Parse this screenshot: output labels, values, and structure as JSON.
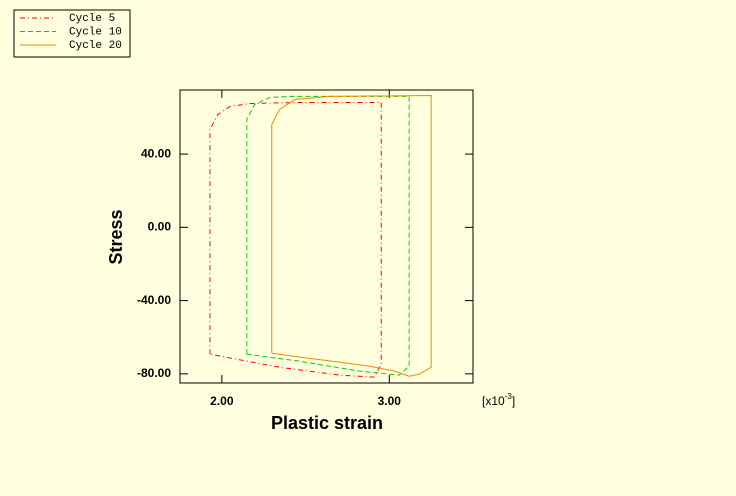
{
  "chart_data": {
    "type": "line",
    "xlabel": "Plastic strain",
    "ylabel": "Stress",
    "x_scale": {
      "base": "[x10",
      "exponent": "-3",
      "close": "]"
    },
    "xlim": [
      1.75,
      3.5
    ],
    "xticks": [
      {
        "value": 2,
        "label": "2.00"
      },
      {
        "value": 3,
        "label": "3.00"
      }
    ],
    "ylim": [
      -85,
      75
    ],
    "yticks": [
      {
        "value": 40,
        "label": "40.00"
      },
      {
        "value": 0,
        "label": "0.00"
      },
      {
        "value": -40,
        "label": "-40.00"
      },
      {
        "value": -80,
        "label": "-80.00"
      }
    ],
    "legend": "top-left",
    "series": [
      {
        "name": "Cycle 5",
        "color": "#ff0000",
        "dash": "dashdot",
        "x": [
          1.929,
          1.929,
          1.976,
          2.048,
          2.167,
          2.464,
          2.952,
          2.952,
          2.911,
          2.702,
          2.345,
          1.929
        ],
        "values": [
          -69.3,
          53.5,
          61.6,
          66.0,
          67.6,
          68.2,
          68.2,
          -74.7,
          -81.8,
          -80.7,
          -76.4,
          -69.3
        ]
      },
      {
        "name": "Cycle 10",
        "color": "#00cc00",
        "dash": "dashed",
        "x": [
          2.149,
          2.149,
          2.196,
          2.286,
          2.405,
          3.119,
          3.119,
          3.06,
          2.821,
          2.464,
          2.149
        ],
        "values": [
          -69.3,
          58.9,
          67.1,
          70.9,
          71.5,
          71.5,
          -75.8,
          -80.7,
          -78.5,
          -73.1,
          -69.3
        ]
      },
      {
        "name": "Cycle 20",
        "color": "#ee8800",
        "dash": "solid",
        "x": [
          2.298,
          2.298,
          2.345,
          2.435,
          2.643,
          3.25,
          3.25,
          3.179,
          3.119,
          3.03,
          2.881,
          2.702,
          2.464,
          2.298
        ],
        "values": [
          -68.7,
          56.2,
          64.4,
          69.8,
          71.5,
          72.0,
          -76.4,
          -80.2,
          -81.3,
          -78.5,
          -75.8,
          -73.6,
          -70.9,
          -68.7
        ]
      }
    ]
  }
}
